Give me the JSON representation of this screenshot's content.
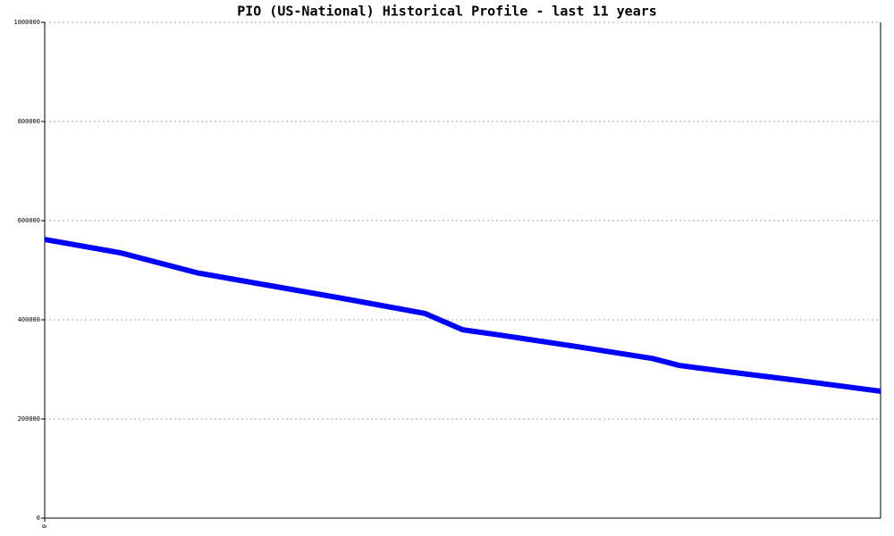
{
  "chart_data": {
    "type": "line",
    "title": "PIO (US-National) Historical Profile - last 11 years",
    "x": [
      0,
      1,
      2,
      3,
      4,
      5,
      5.5,
      6,
      7,
      8,
      8.35,
      9,
      10,
      11
    ],
    "series": [
      {
        "color": "#0000ff",
        "values": [
          562000,
          535000,
          495000,
          468000,
          441000,
          413000,
          380000,
          369000,
          346000,
          322000,
          308000,
          295000,
          276000,
          256000
        ]
      }
    ],
    "xlim": [
      0,
      11
    ],
    "xticks": [
      0
    ],
    "ylim": [
      0,
      1000000
    ],
    "yticks": [
      0,
      200000,
      400000,
      600000,
      800000,
      1000000
    ],
    "grid": true
  }
}
